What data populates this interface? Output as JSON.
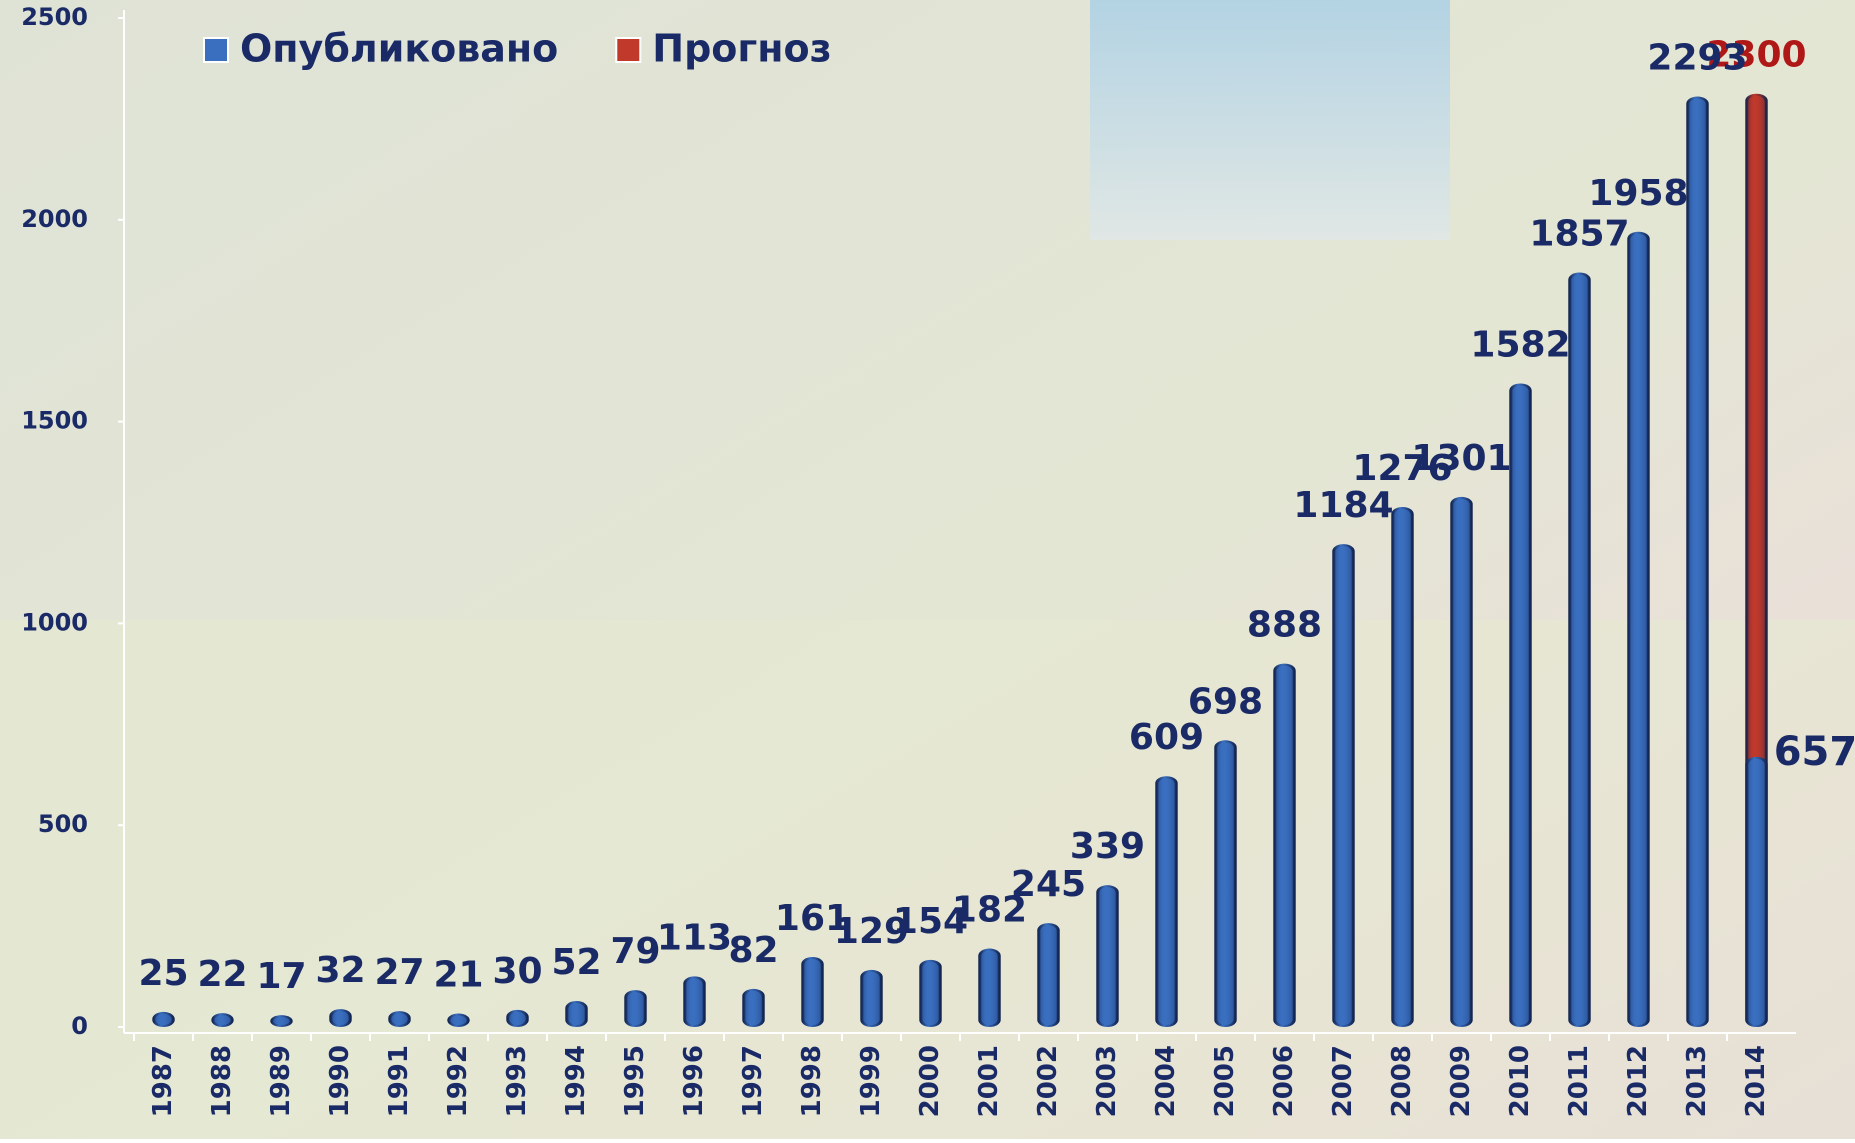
{
  "chart_data": {
    "type": "bar",
    "overlap": true,
    "categories": [
      "1987",
      "1988",
      "1989",
      "1990",
      "1991",
      "1992",
      "1993",
      "1994",
      "1995",
      "1996",
      "1997",
      "1998",
      "1999",
      "2000",
      "2001",
      "2002",
      "2003",
      "2004",
      "2005",
      "2006",
      "2007",
      "2008",
      "2009",
      "2010",
      "2011",
      "2012",
      "2013",
      "2014"
    ],
    "series": [
      {
        "name": "Прогноз",
        "color": "#c0392b",
        "label_color": "#b01818",
        "values": [
          null,
          null,
          null,
          null,
          null,
          null,
          null,
          null,
          null,
          null,
          null,
          null,
          null,
          null,
          null,
          null,
          null,
          null,
          null,
          null,
          null,
          null,
          null,
          null,
          null,
          null,
          null,
          2300
        ]
      },
      {
        "name": "Опубликовано",
        "color": "#3a6fc0",
        "label_color": "#1a2a66",
        "values": [
          25,
          22,
          17,
          32,
          27,
          21,
          30,
          52,
          79,
          113,
          82,
          161,
          129,
          154,
          182,
          245,
          339,
          609,
          698,
          888,
          1184,
          1276,
          1301,
          1582,
          1857,
          1958,
          2293,
          657
        ]
      }
    ],
    "legend_order": [
      1,
      0
    ],
    "ylim": [
      0,
      2500
    ],
    "yticks": [
      0,
      500,
      1000,
      1500,
      2000,
      2500
    ],
    "grid": false
  }
}
